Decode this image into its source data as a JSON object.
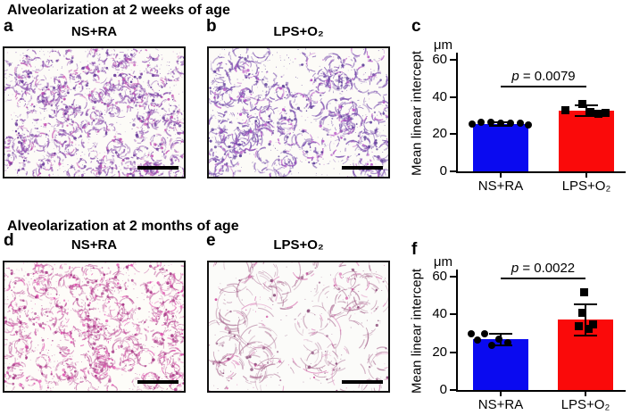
{
  "figure": {
    "section1_title": "Alveolarization at 2 weeks of age",
    "section2_title": "Alveolarization at 2 months of age"
  },
  "panels": [
    {
      "letter": "a",
      "label": "NS+RA",
      "kind": "lung-micrograph",
      "scale_bar": true,
      "texture": {
        "seed": 11,
        "cells": 240,
        "rmin": 3.5,
        "rmax": 8.5,
        "stroke": "#8b4fae",
        "dot": "#6a3d9a",
        "accent": "#c653b4",
        "alpha": 0.75,
        "line": 1.1,
        "specks": 520,
        "bg": "#fcfbf7"
      }
    },
    {
      "letter": "b",
      "label": "LPS+O₂",
      "kind": "lung-micrograph",
      "scale_bar": true,
      "texture": {
        "seed": 22,
        "cells": 160,
        "rmin": 5,
        "rmax": 11,
        "stroke": "#7a4fae",
        "dot": "#5b3c96",
        "accent": "#b653c6",
        "alpha": 0.8,
        "line": 1.1,
        "specks": 430,
        "bg": "#fcfbf7"
      }
    },
    {
      "letter": "d",
      "label": "NS+RA",
      "kind": "lung-micrograph",
      "scale_bar": true,
      "texture": {
        "seed": 33,
        "cells": 215,
        "rmin": 4,
        "rmax": 9.5,
        "stroke": "#c05a9e",
        "dot": "#a63a86",
        "accent": "#e04fae",
        "alpha": 0.7,
        "line": 1.0,
        "specks": 470,
        "bg": "#fdfcf8"
      }
    },
    {
      "letter": "e",
      "label": "LPS+O₂",
      "kind": "lung-micrograph",
      "scale_bar": true,
      "texture": {
        "seed": 44,
        "cells": 58,
        "rmin": 10,
        "rmax": 22,
        "stroke": "#a8688f",
        "dot": "#8a4a78",
        "accent": "#cf4fa0",
        "alpha": 0.65,
        "line": 0.9,
        "specks": 130,
        "bg": "#fbfbf9"
      }
    }
  ],
  "chart_data": [
    {
      "panel_letter": "c",
      "type": "bar",
      "unit_label": "μm",
      "ylabel": "Mean linear intercept",
      "ylim": [
        0,
        60
      ],
      "yticks": [
        0,
        20,
        40,
        60
      ],
      "p_symbol": "p",
      "p_rest": " = 0.0079",
      "p_value": 0.0079,
      "categories": [
        "NS+RA",
        "LPS+O₂"
      ],
      "legend": "none",
      "series": [
        {
          "name": "NS+RA",
          "color": "#0a0af0",
          "marker": "circle",
          "value": 25.5,
          "err_low": 24.7,
          "err_high": 26.3,
          "points": [
            [
              -32,
              25.4
            ],
            [
              -22,
              26.2
            ],
            [
              -11,
              26.4
            ],
            [
              0,
              26.0
            ],
            [
              11,
              26.1
            ],
            [
              22,
              25.9
            ],
            [
              31,
              24.8
            ]
          ]
        },
        {
          "name": "LPS+O₂",
          "color": "#fa0a0a",
          "marker": "square",
          "value": 32.6,
          "err_low": 29.8,
          "err_high": 35.6,
          "points": [
            [
              -24,
              32.8
            ],
            [
              -5,
              36.2
            ],
            [
              4,
              31.8
            ],
            [
              13,
              31.2
            ],
            [
              21,
              31.4
            ]
          ]
        }
      ]
    },
    {
      "panel_letter": "f",
      "type": "bar",
      "unit_label": "μm",
      "ylabel": "Mean linear intercept",
      "ylim": [
        0,
        60
      ],
      "yticks": [
        0,
        20,
        40,
        60
      ],
      "p_symbol": "p",
      "p_rest": " = 0.0022",
      "p_value": 0.0022,
      "categories": [
        "NS+RA",
        "LPS+O₂"
      ],
      "legend": "none",
      "series": [
        {
          "name": "NS+RA",
          "color": "#0a0af0",
          "marker": "circle",
          "value": 27.0,
          "err_low": 23.8,
          "err_high": 30.0,
          "points": [
            [
              -33,
              29.8
            ],
            [
              -18,
              29.6
            ],
            [
              -26,
              26.5
            ],
            [
              -10,
              23.8
            ],
            [
              -2,
              26.8
            ],
            [
              8,
              25.2
            ]
          ]
        },
        {
          "name": "LPS+O₂",
          "color": "#fa0a0a",
          "marker": "square",
          "value": 37.3,
          "err_low": 28.6,
          "err_high": 45.2,
          "points": [
            [
              -2,
              51.6
            ],
            [
              -4,
              41.0
            ],
            [
              -8,
              34.0
            ],
            [
              3,
              32.3
            ],
            [
              8,
              34.8
            ]
          ]
        }
      ]
    }
  ]
}
